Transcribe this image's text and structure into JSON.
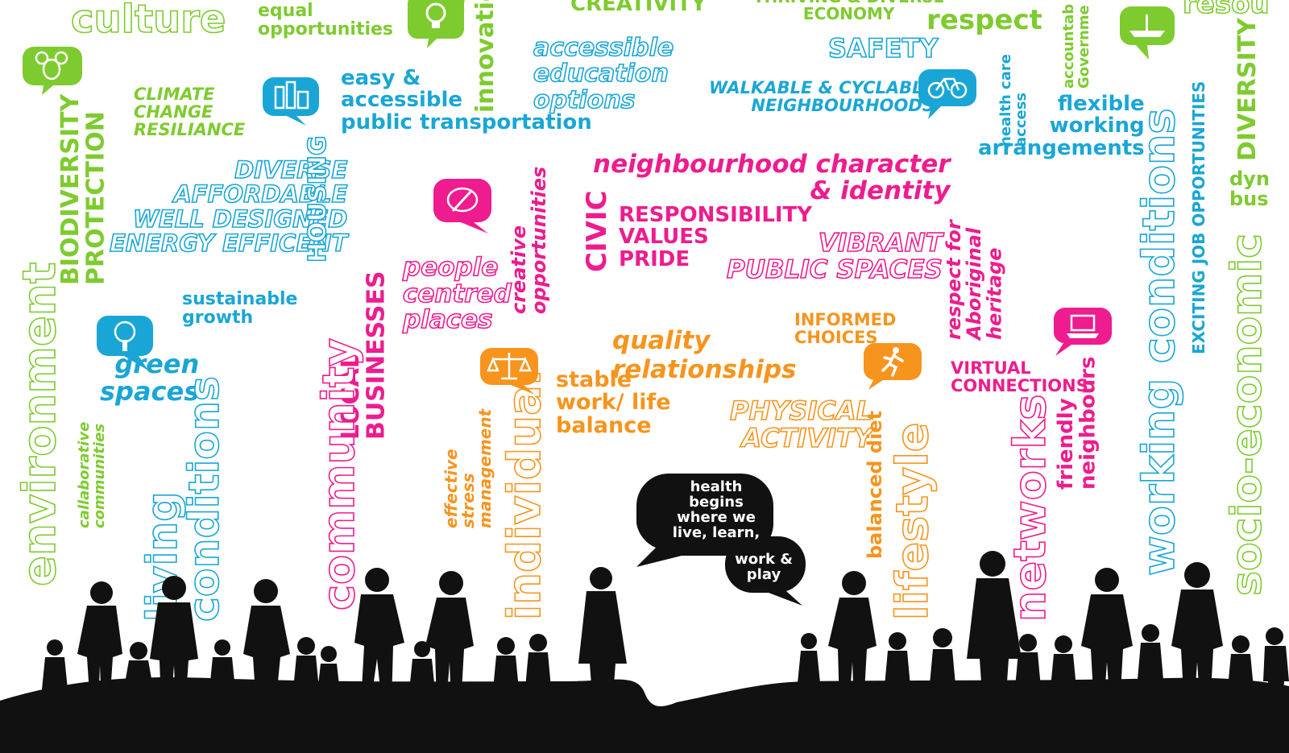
{
  "colors": {
    "green": "#7ecb2f",
    "blue": "#19a6d6",
    "pink": "#ee1c8e",
    "orange": "#f7941d",
    "black": "#111111"
  },
  "words": {
    "culture": "culture",
    "equal_opportunities": "equal\nopportunities",
    "innovation": "innovatio",
    "creativity": "CREATIVITY",
    "thriving_economy": "THRIVING & DIVERSE\nECONOMY",
    "respect": "respect",
    "accountable_government": "accountab\nGovernme",
    "resources": "resou",
    "accessible_education": "accessible\neducation\noptions",
    "safety": "SAFETY",
    "easy_transport": "easy &\naccessible\npublic transportation",
    "walkable": "WALKABLE & CYCLABLE\nNEIGHBOURHOODS",
    "health_care_access": "health care\naccess",
    "flexible_working": "flexible\nworking\narrangements",
    "diversity": "DIVERSITY",
    "dynamic_business": "dyn\nbus",
    "climate_change": "CLIMATE\nCHANGE\nRESILIANCE",
    "biodiversity_protection": "BIODIVERSITY\nPROTECTION",
    "diverse_housing": "DIVERSE\nAFFORDABLE\nWELL DESIGNED\nENERGY EFFICENT",
    "housing": "HOUSING",
    "neighbourhood_character": "neighbourhood character\n& identity",
    "civic": "CIVIC",
    "responsibility_values": "RESPONSIBILITY\nVALUES\nPRIDE",
    "vibrant_spaces": "VIBRANT\nPUBLIC SPACES",
    "creative_opportunities": "creative\nopportunities",
    "people_centred": "people\ncentred\nplaces",
    "respect_aboriginal": "respect for\nAboriginal\nheritage",
    "exciting_jobs": "EXCITING JOB OPPORTUNITIES",
    "working_conditions": "working conditions",
    "socio_economic": "socio-economic",
    "sustainable_growth": "sustainable\ngrowth",
    "environment": "environment",
    "green_spaces": "green\nspaces",
    "local_businesses": "LOCAL\nBUSINESSES",
    "informed_choices": "INFORMED\nCHOICES",
    "quality_relationships": "quality\nrelationships",
    "stable_balance": "stable\nwork/ life\nbalance",
    "virtual_connections": "VIRTUAL\nCONNECTIONS",
    "physical_activity": "PHYSICAL\nACTIVITY",
    "collaborative": "callaborative\ncommunities",
    "living_conditions": "living\nconditions",
    "community": "community",
    "stress_management": "effective\nstress\nmanagement",
    "individual": "individual",
    "balanced_diet": "balanced diet",
    "lifestyle": "lifestyle",
    "networks": "networks",
    "friendly_neighbours": "friendly\nneighbours",
    "speech_1": "health\nbegins\nwhere we\nlive, learn,",
    "speech_2": "work &\nplay"
  },
  "icons": [
    "lightbulb-icon",
    "koala-icon",
    "buildings-icon",
    "bicycle-icon",
    "boat-icon",
    "palette-icon",
    "tree-icon",
    "scales-icon",
    "runner-icon",
    "laptop-icon"
  ]
}
